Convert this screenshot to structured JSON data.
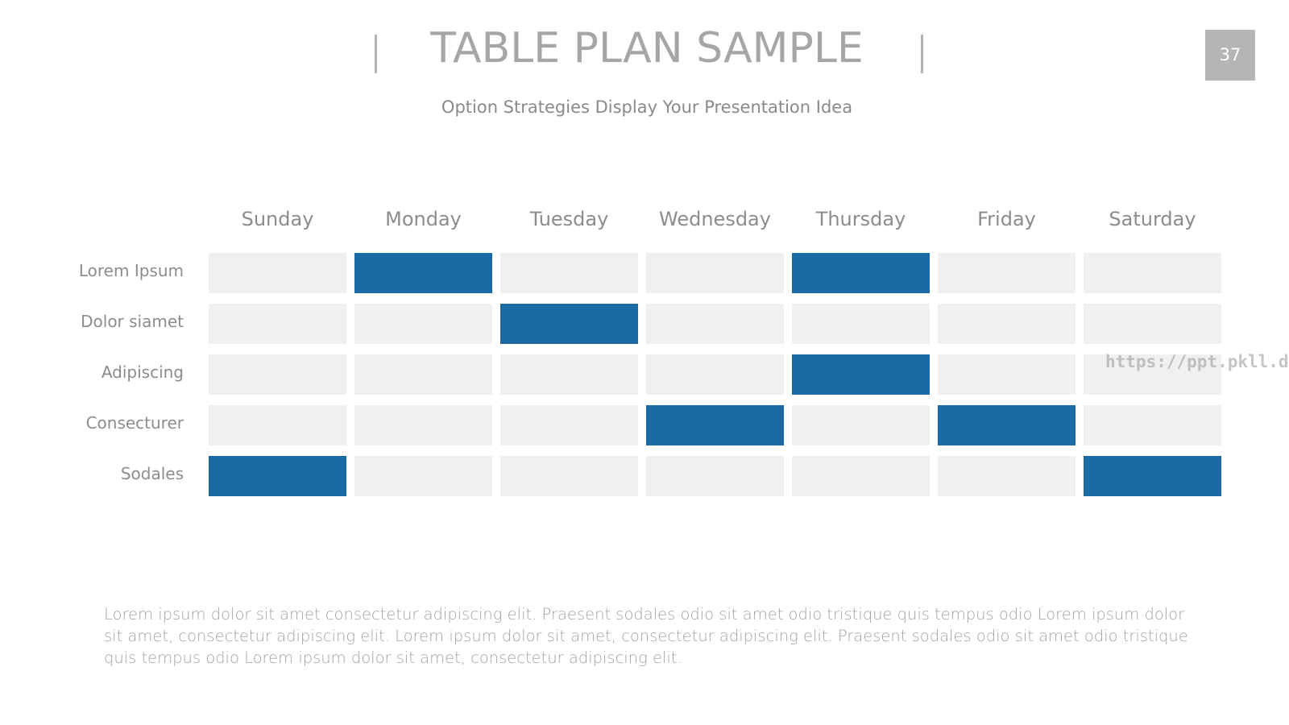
{
  "header": {
    "title": "TABLE PLAN SAMPLE",
    "subtitle": "Option Strategies Display Your Presentation Idea",
    "page_number": "37"
  },
  "table": {
    "columns": [
      "Sunday",
      "Monday",
      "Tuesday",
      "Wednesday",
      "Thursday",
      "Friday",
      "Saturday"
    ],
    "active_color": "#1c6aa5",
    "empty_color": "#f0f0f1",
    "rows": [
      {
        "label": "Lorem Ipsum",
        "active": [
          false,
          true,
          false,
          false,
          true,
          false,
          false
        ]
      },
      {
        "label": "Dolor siamet",
        "active": [
          false,
          false,
          true,
          false,
          false,
          false,
          false
        ]
      },
      {
        "label": "Adipiscing",
        "active": [
          false,
          false,
          false,
          false,
          true,
          false,
          false
        ]
      },
      {
        "label": "Consecturer",
        "active": [
          false,
          false,
          false,
          true,
          false,
          true,
          false
        ]
      },
      {
        "label": "Sodales",
        "active": [
          true,
          false,
          false,
          false,
          false,
          false,
          true
        ]
      }
    ]
  },
  "body_text": "Lorem ipsum dolor sit amet consectetur adipiscing elit. Praesent sodales odio sit amet odio tristique quis tempus odio Lorem ipsum dolor sit amet, consectetur adipiscing elit. Lorem ipsum dolor sit amet, consectetur adipiscing elit. Praesent sodales odio sit amet odio tristique quis tempus odio Lorem ipsum dolor sit amet, consectetur adipiscing elit.",
  "watermark": "https://ppt.pkll.de"
}
